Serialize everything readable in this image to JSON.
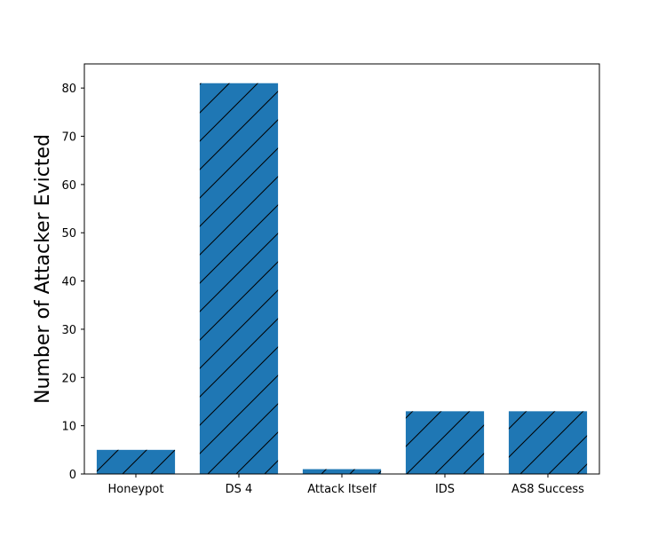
{
  "chart_data": {
    "type": "bar",
    "categories": [
      "Honeypot",
      "DS 4",
      "Attack Itself",
      "IDS",
      "AS8 Success"
    ],
    "values": [
      5,
      81,
      1,
      13,
      13
    ],
    "xlabel": "",
    "ylabel": "Number of Attacker Evicted",
    "ylim": [
      0,
      85
    ],
    "yticks": [
      0,
      10,
      20,
      30,
      40,
      50,
      60,
      70,
      80
    ],
    "bar_color": "#1f77b4",
    "hatch": "diagonal",
    "hatch_color": "#000000",
    "grid": false,
    "legend": "none"
  }
}
